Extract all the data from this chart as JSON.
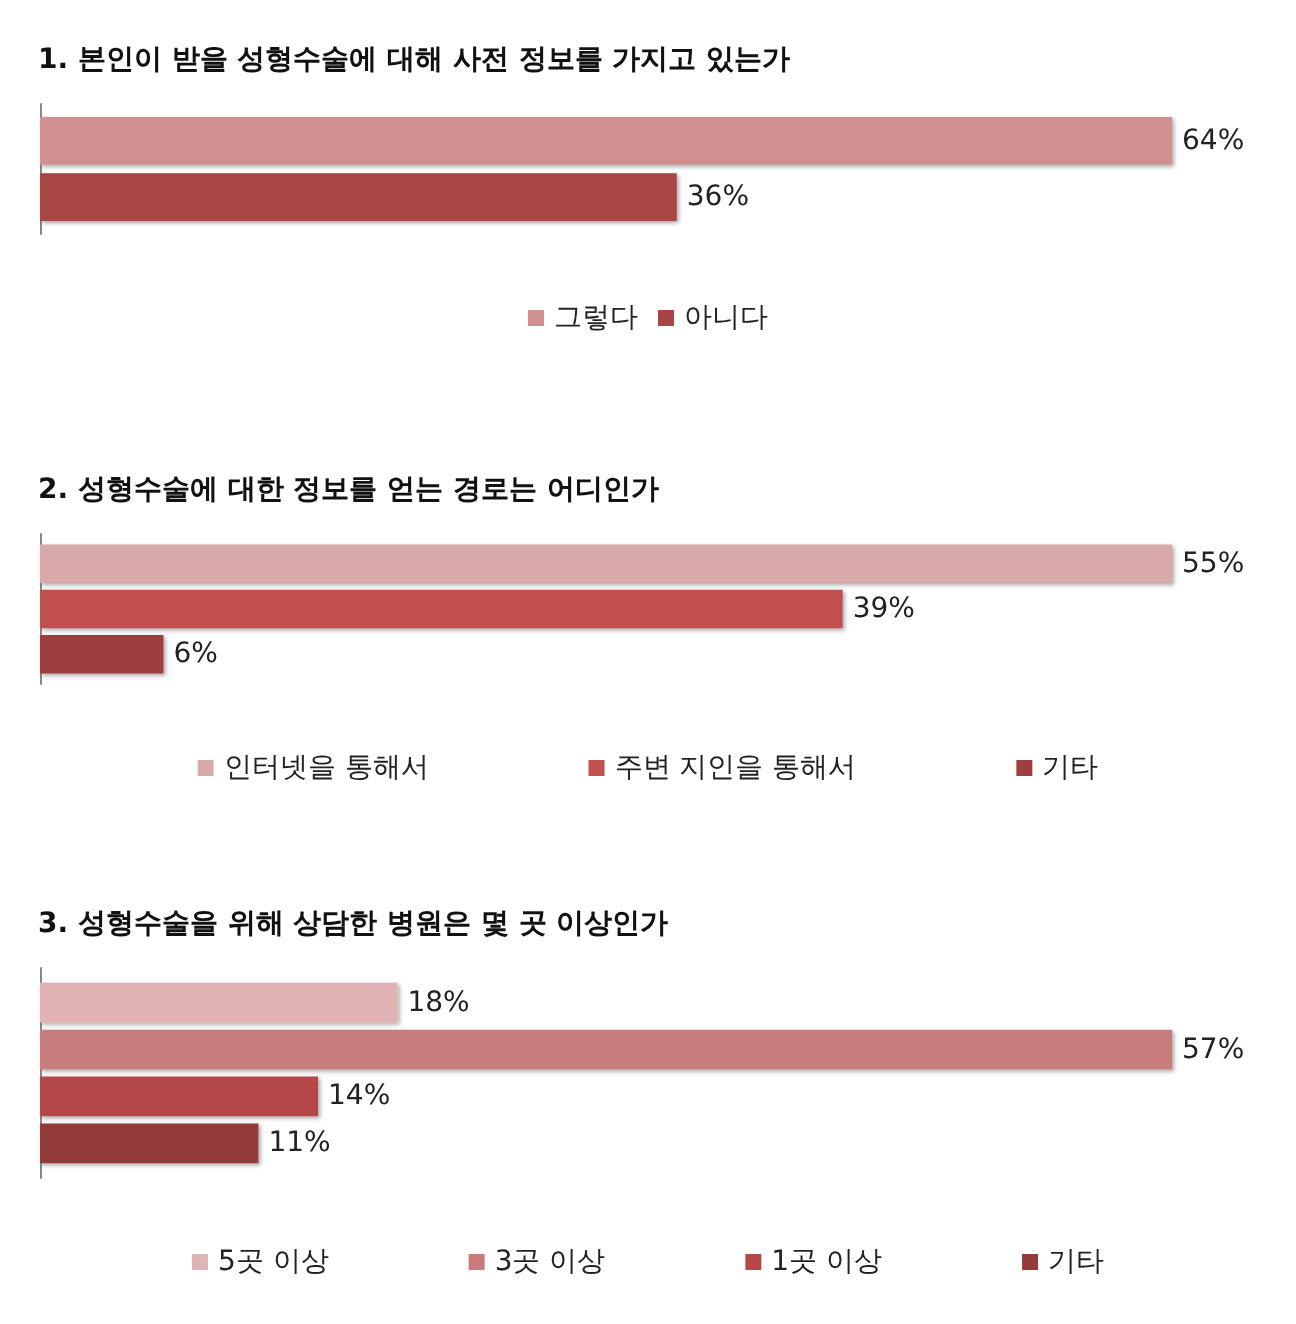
{
  "chart_data": [
    {
      "type": "bar",
      "orientation": "horizontal",
      "tick_labels": false,
      "title": "1. 본인이 받을 성형수술에 대해 사전 정보를 가지고 있는가",
      "categories": [
        null
      ],
      "legend": "bottom",
      "series": [
        {
          "name": "그렇다",
          "color": "#d09090",
          "values": [
            64
          ],
          "value_labels": [
            "64%"
          ]
        },
        {
          "name": "아니다",
          "color": "#a84444",
          "values": [
            36
          ],
          "value_labels": [
            "36%"
          ]
        }
      ]
    },
    {
      "type": "bar",
      "orientation": "horizontal",
      "tick_labels": false,
      "title": "2. 성형수술에 대한 정보를 얻는 경로는 어디인가",
      "categories": [
        null
      ],
      "legend": "bottom",
      "series": [
        {
          "name": "인터넷을 통해서",
          "color": "#d9a8a8",
          "values": [
            55
          ],
          "value_labels": [
            "55%"
          ]
        },
        {
          "name": "주변 지인을 통해서",
          "color": "#c0504d",
          "values": [
            39
          ],
          "value_labels": [
            "39%"
          ]
        },
        {
          "name": "기타",
          "color": "#9e3e3e",
          "values": [
            6
          ],
          "value_labels": [
            "6%"
          ]
        }
      ]
    },
    {
      "type": "bar",
      "orientation": "horizontal",
      "tick_labels": false,
      "title": "3. 성형수술을 위해 상담한 병원은 몇 곳 이상인가",
      "categories": [
        null
      ],
      "legend": "bottom",
      "series": [
        {
          "name": "5곳 이상",
          "color": "#dfb3b3",
          "values": [
            18
          ],
          "value_labels": [
            "18%"
          ]
        },
        {
          "name": "3곳 이상",
          "color": "#c97b7b",
          "values": [
            57
          ],
          "value_labels": [
            "57%"
          ]
        },
        {
          "name": "1곳 이상",
          "color": "#b44747",
          "values": [
            14
          ],
          "value_labels": [
            "14%"
          ]
        },
        {
          "name": "기타",
          "color": "#933b3b",
          "values": [
            11
          ],
          "value_labels": [
            "11%"
          ]
        }
      ]
    }
  ]
}
